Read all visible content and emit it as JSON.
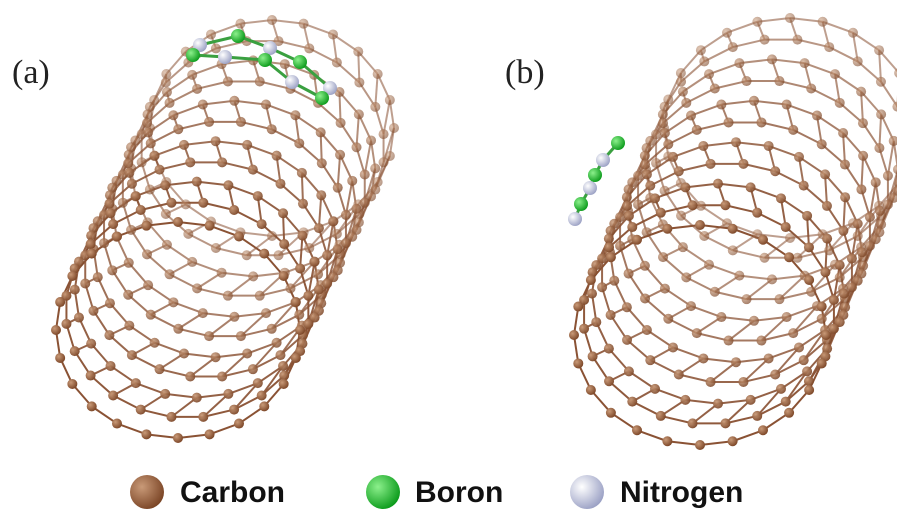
{
  "panels": [
    {
      "label": "(a)"
    },
    {
      "label": "(b)"
    }
  ],
  "legend": [
    {
      "label": "Carbon"
    },
    {
      "label": "Boron"
    },
    {
      "label": "Nitrogen"
    }
  ]
}
